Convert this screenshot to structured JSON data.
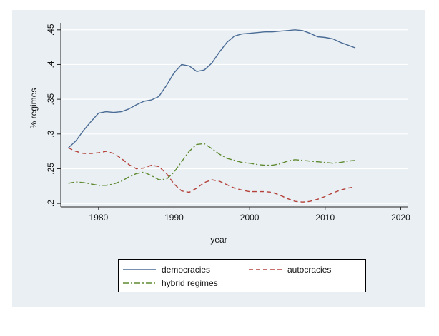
{
  "chart_data": {
    "type": "line",
    "title": "",
    "xlabel": "year",
    "ylabel": "% regimes",
    "xlim": [
      1975,
      2021
    ],
    "ylim": [
      0.195,
      0.458
    ],
    "x_ticks": [
      1980,
      1990,
      2000,
      2010,
      2020
    ],
    "y_ticks": [
      0.2,
      0.25,
      0.3,
      0.35,
      0.4,
      0.45
    ],
    "x_tick_labels": [
      "1980",
      "1990",
      "2000",
      "2010",
      "2020"
    ],
    "y_tick_labels": [
      ".2",
      ".25",
      ".3",
      ".35",
      ".4",
      ".45"
    ],
    "grid": "horizontal",
    "legend_position": "bottom",
    "series": [
      {
        "name": "democracies",
        "color": "#4a6b95",
        "style": "solid",
        "x": [
          1976,
          1977,
          1978,
          1979,
          1980,
          1981,
          1982,
          1983,
          1984,
          1985,
          1986,
          1987,
          1988,
          1989,
          1990,
          1991,
          1992,
          1993,
          1994,
          1995,
          1996,
          1997,
          1998,
          1999,
          2000,
          2001,
          2002,
          2003,
          2004,
          2005,
          2006,
          2007,
          2008,
          2009,
          2010,
          2011,
          2012,
          2013,
          2014
        ],
        "y": [
          0.28,
          0.29,
          0.305,
          0.318,
          0.33,
          0.332,
          0.331,
          0.332,
          0.336,
          0.342,
          0.347,
          0.349,
          0.354,
          0.37,
          0.388,
          0.4,
          0.398,
          0.39,
          0.392,
          0.402,
          0.418,
          0.432,
          0.441,
          0.444,
          0.445,
          0.446,
          0.447,
          0.447,
          0.448,
          0.449,
          0.45,
          0.449,
          0.445,
          0.44,
          0.439,
          0.437,
          0.432,
          0.428,
          0.424
        ]
      },
      {
        "name": "autocracies",
        "color": "#b5413a",
        "style": "dashed",
        "x": [
          1976,
          1977,
          1978,
          1979,
          1980,
          1981,
          1982,
          1983,
          1984,
          1985,
          1986,
          1987,
          1988,
          1989,
          1990,
          1991,
          1992,
          1993,
          1994,
          1995,
          1996,
          1997,
          1998,
          1999,
          2000,
          2001,
          2002,
          2003,
          2004,
          2005,
          2006,
          2007,
          2008,
          2009,
          2010,
          2011,
          2012,
          2013,
          2014
        ],
        "y": [
          0.28,
          0.275,
          0.272,
          0.272,
          0.273,
          0.275,
          0.272,
          0.265,
          0.256,
          0.25,
          0.251,
          0.255,
          0.253,
          0.243,
          0.228,
          0.218,
          0.216,
          0.222,
          0.23,
          0.234,
          0.232,
          0.227,
          0.222,
          0.219,
          0.217,
          0.217,
          0.217,
          0.216,
          0.212,
          0.207,
          0.203,
          0.202,
          0.203,
          0.206,
          0.21,
          0.215,
          0.219,
          0.222,
          0.224
        ]
      },
      {
        "name": "hybrid regimes",
        "color": "#5f8a30",
        "style": "dash-dot",
        "x": [
          1976,
          1977,
          1978,
          1979,
          1980,
          1981,
          1982,
          1983,
          1984,
          1985,
          1986,
          1987,
          1988,
          1989,
          1990,
          1991,
          1992,
          1993,
          1994,
          1995,
          1996,
          1997,
          1998,
          1999,
          2000,
          2001,
          2002,
          2003,
          2004,
          2005,
          2006,
          2007,
          2008,
          2009,
          2010,
          2011,
          2012,
          2013,
          2014
        ],
        "y": [
          0.229,
          0.231,
          0.23,
          0.228,
          0.226,
          0.226,
          0.228,
          0.232,
          0.238,
          0.243,
          0.245,
          0.24,
          0.234,
          0.235,
          0.245,
          0.26,
          0.275,
          0.285,
          0.286,
          0.279,
          0.271,
          0.265,
          0.262,
          0.259,
          0.258,
          0.256,
          0.255,
          0.255,
          0.257,
          0.261,
          0.263,
          0.262,
          0.261,
          0.26,
          0.259,
          0.258,
          0.259,
          0.261,
          0.262
        ]
      }
    ]
  }
}
